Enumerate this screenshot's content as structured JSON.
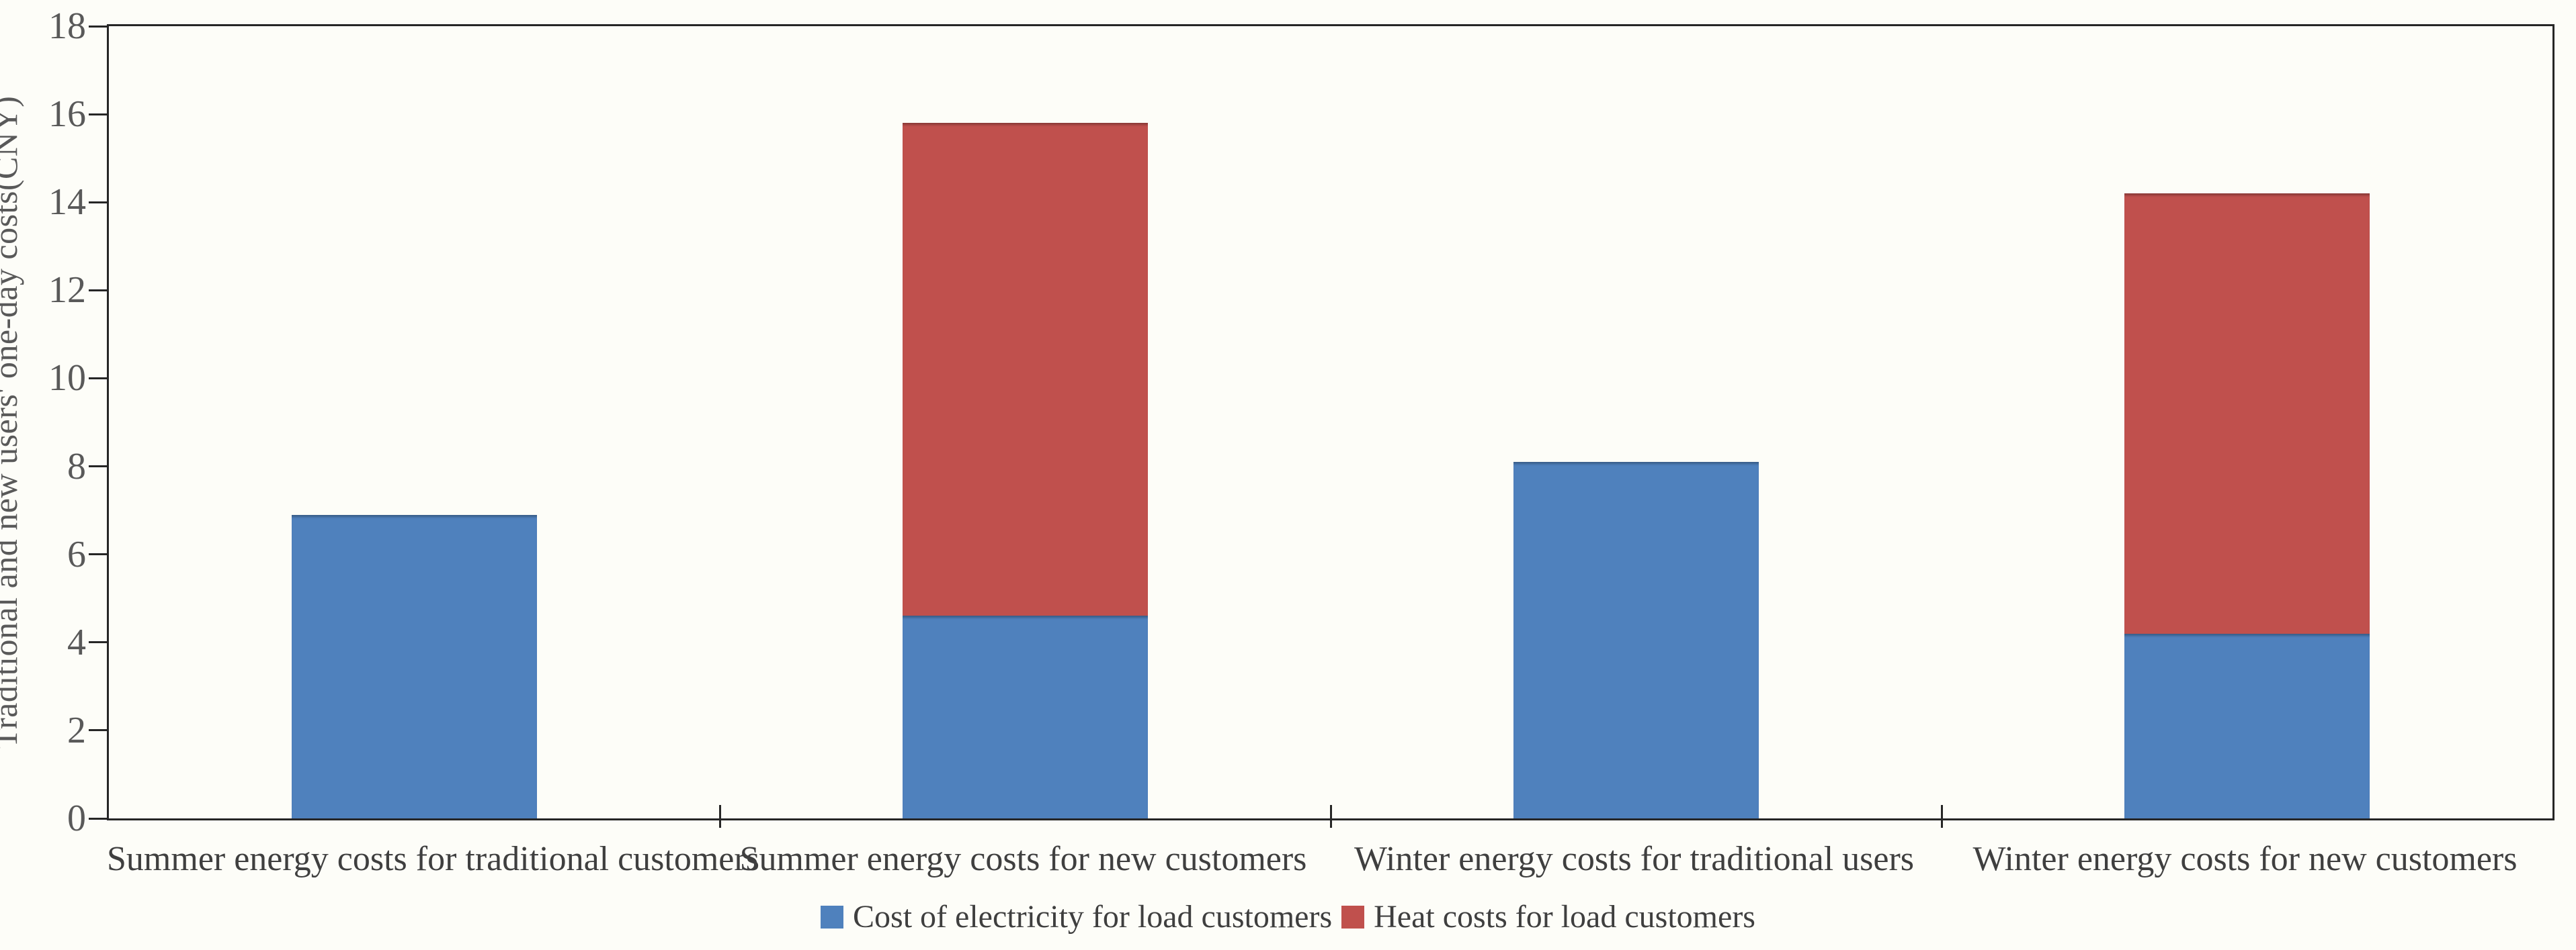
{
  "chart_data": {
    "type": "bar",
    "stacked": true,
    "title": "",
    "xlabel": "",
    "ylabel": "Traditional and new users' one-day costs(CNY)",
    "ylim": [
      0,
      18
    ],
    "ytick_step": 2,
    "yticks": [
      0,
      2,
      4,
      6,
      8,
      10,
      12,
      14,
      16,
      18
    ],
    "grid": false,
    "legend_position": "bottom-center",
    "categories": [
      "Summer energy costs for traditional customers",
      "Summer energy costs for new customers",
      "Winter energy costs for traditional users",
      "Winter energy costs for new customers"
    ],
    "series": [
      {
        "name": "Cost of electricity for load customers",
        "color": "#4F81BD",
        "values": [
          6.9,
          4.6,
          8.1,
          4.2
        ]
      },
      {
        "name": "Heat costs for load customers",
        "color": "#C0504D",
        "values": [
          0,
          11.2,
          0,
          10.0
        ]
      }
    ],
    "stacked_totals": [
      6.9,
      15.8,
      8.1,
      14.2
    ]
  },
  "colors": {
    "background": "#fdfdf8",
    "axis_line": "#262626",
    "tick_label_text": "#595959",
    "category_label_text": "#3f3f3f",
    "series_blue": "#4F81BD",
    "series_red": "#C0504D"
  }
}
